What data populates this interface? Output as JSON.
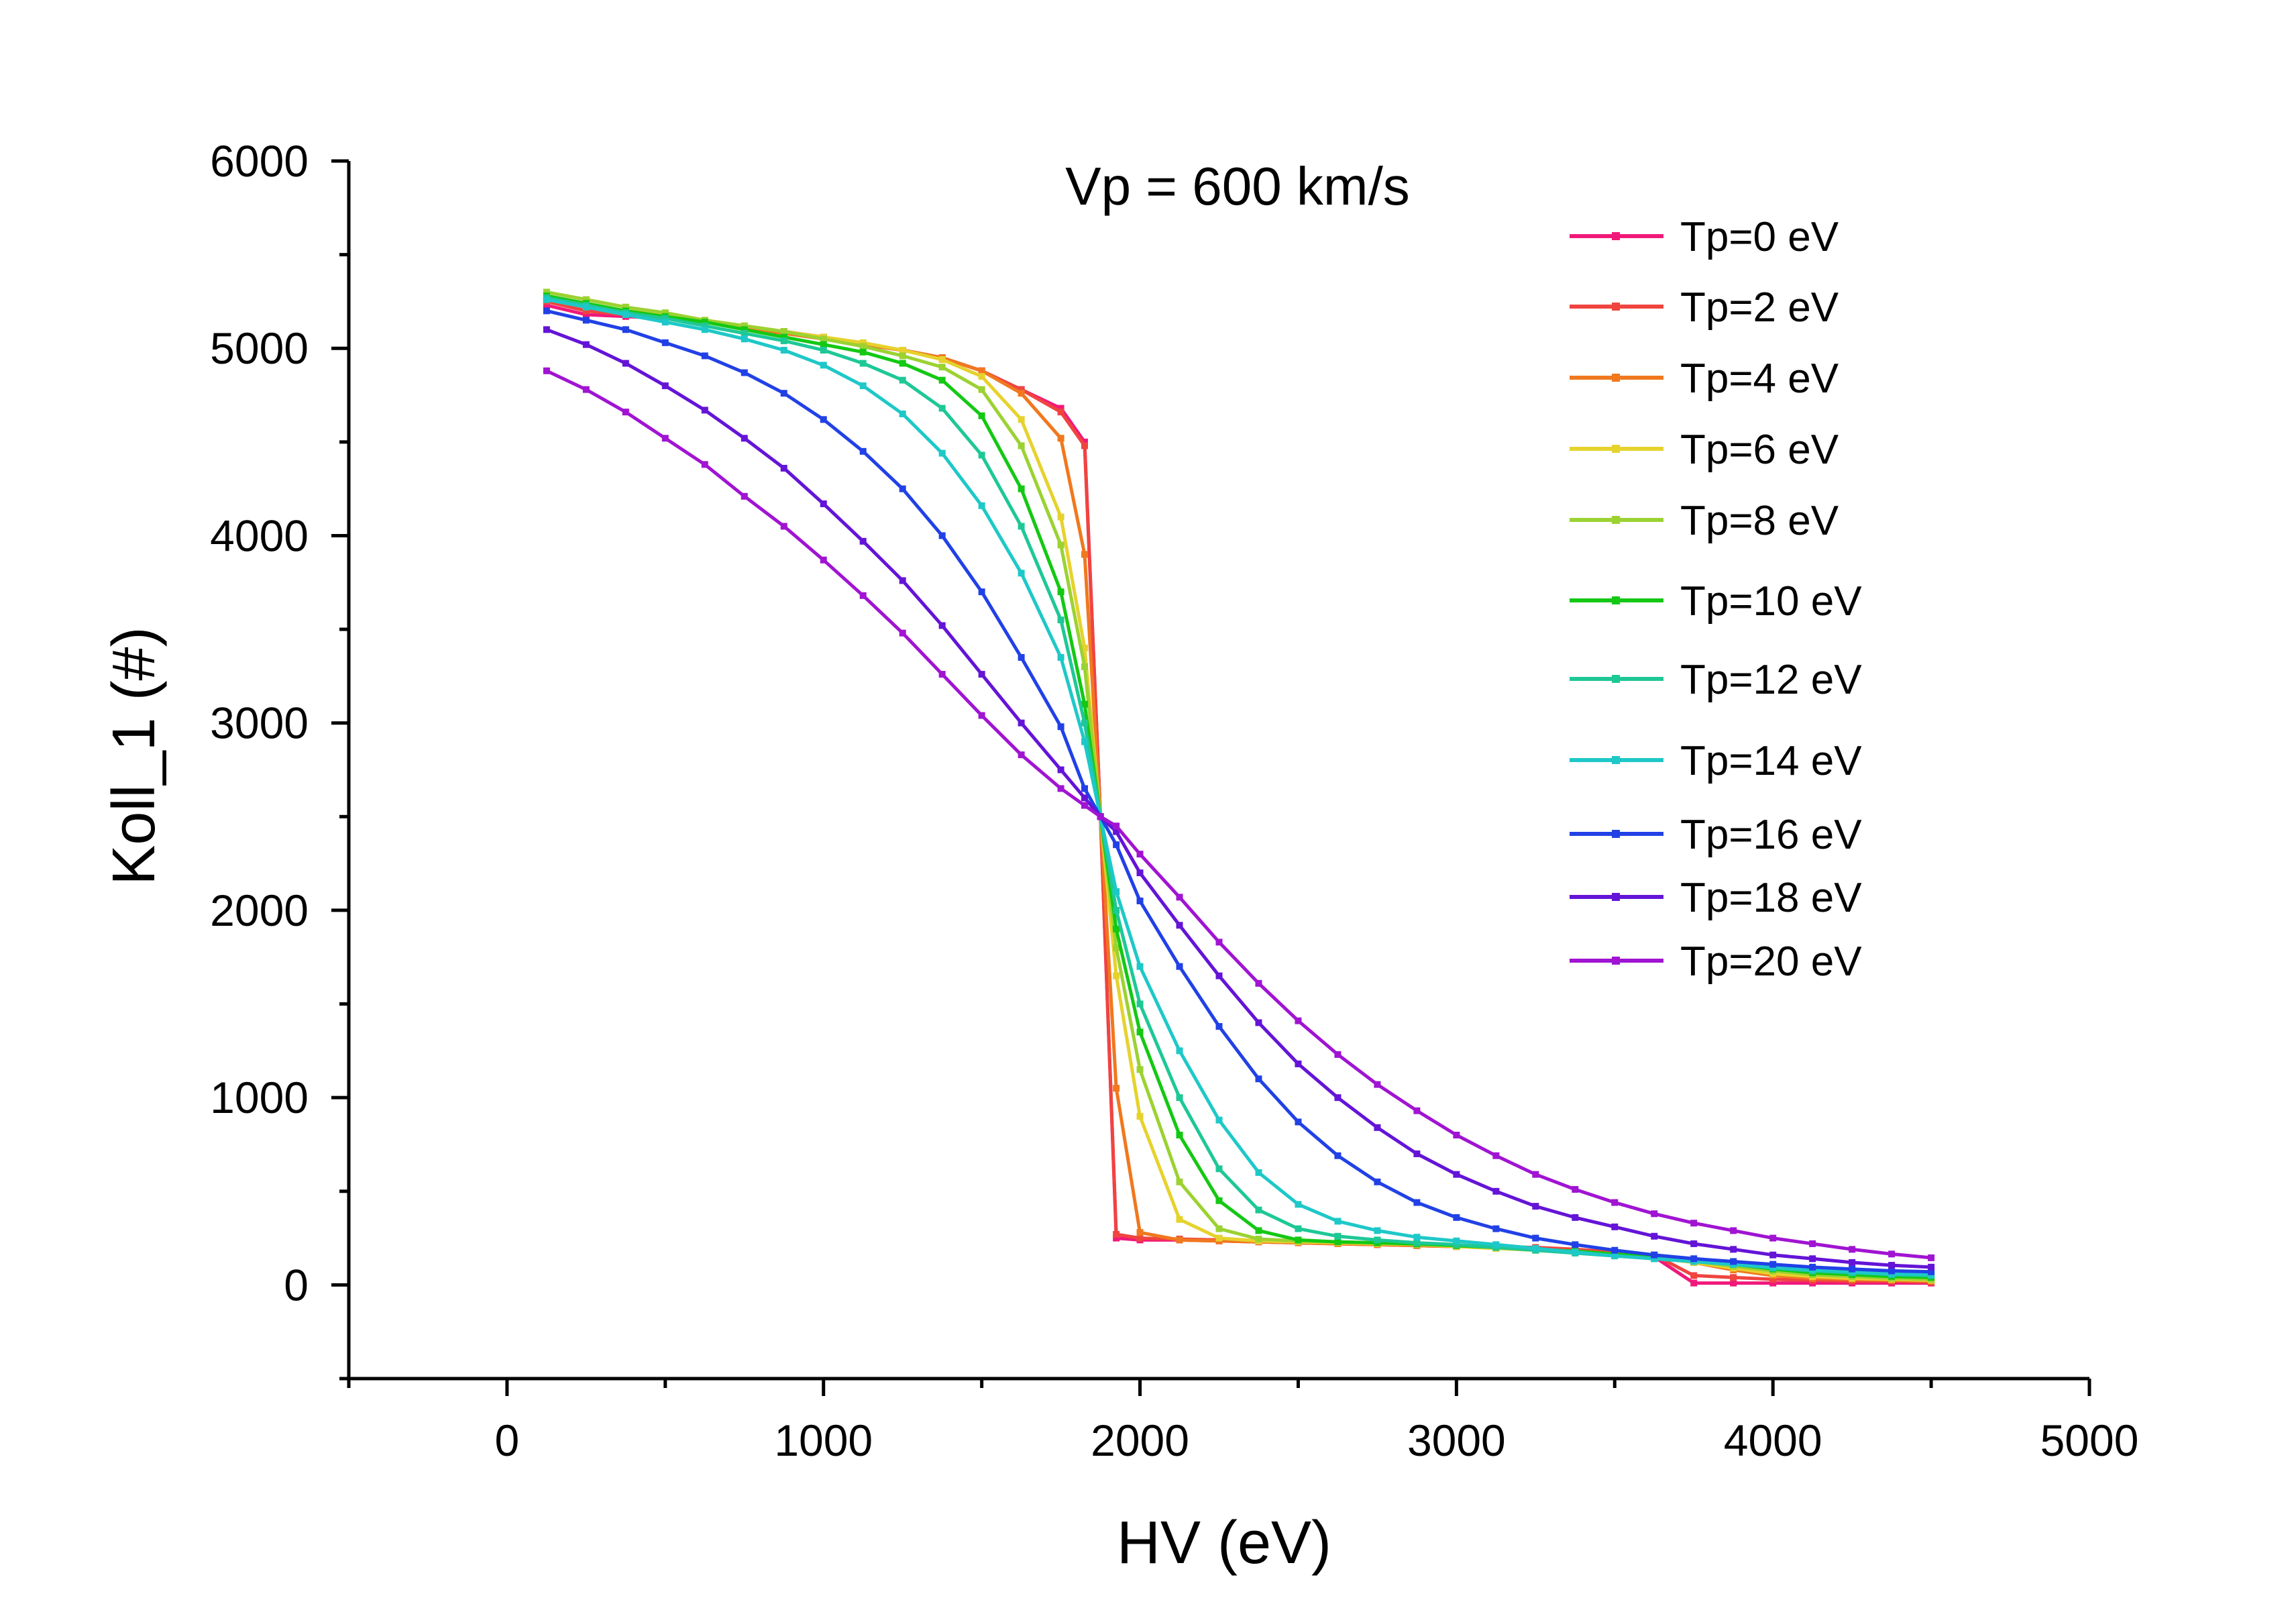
{
  "chart_data": {
    "type": "line",
    "title": "Vp = 600 km/s",
    "xlabel": "HV (eV)",
    "ylabel": "Koll_1 (#)",
    "xlim": [
      -500,
      5000
    ],
    "ylim": [
      -500,
      6000
    ],
    "xticks": [
      0,
      1000,
      2000,
      3000,
      4000,
      5000
    ],
    "yticks": [
      0,
      1000,
      2000,
      3000,
      4000,
      5000,
      6000
    ],
    "xtick_labels": [
      "0",
      "1000",
      "2000",
      "3000",
      "4000",
      "5000"
    ],
    "ytick_labels": [
      "0",
      "1000",
      "2000",
      "3000",
      "4000",
      "5000",
      "6000"
    ],
    "grid": false,
    "legend": "top-right",
    "x": [
      125,
      250,
      375,
      500,
      625,
      750,
      875,
      1000,
      1125,
      1250,
      1375,
      1500,
      1625,
      1750,
      1825,
      1875,
      1925,
      2000,
      2125,
      2250,
      2375,
      2500,
      2625,
      2750,
      2875,
      3000,
      3125,
      3250,
      3375,
      3500,
      3625,
      3750,
      3875,
      4000,
      4125,
      4250,
      4375,
      4500
    ],
    "series": [
      {
        "name": "Tp=0 eV",
        "color": "#f0197a",
        "values": [
          5230,
          5180,
          5170,
          5160,
          5140,
          5110,
          5090,
          5060,
          5020,
          4990,
          4950,
          4880,
          4780,
          4680,
          4500,
          2500,
          250,
          240,
          240,
          235,
          230,
          225,
          220,
          215,
          210,
          205,
          200,
          195,
          185,
          170,
          150,
          10,
          10,
          10,
          10,
          10,
          10,
          10
        ]
      },
      {
        "name": "Tp=2 eV",
        "color": "#f0443f",
        "values": [
          5250,
          5200,
          5180,
          5160,
          5140,
          5110,
          5090,
          5060,
          5020,
          4990,
          4950,
          4880,
          4780,
          4660,
          4480,
          2500,
          270,
          250,
          245,
          240,
          235,
          230,
          225,
          220,
          215,
          210,
          205,
          200,
          190,
          175,
          160,
          50,
          40,
          30,
          25,
          20,
          20,
          15
        ]
      },
      {
        "name": "Tp=4 eV",
        "color": "#f0781e",
        "values": [
          5260,
          5220,
          5190,
          5170,
          5140,
          5110,
          5080,
          5050,
          5020,
          4990,
          4950,
          4880,
          4760,
          4520,
          3900,
          2500,
          1050,
          280,
          240,
          235,
          230,
          225,
          220,
          215,
          210,
          205,
          200,
          190,
          180,
          165,
          150,
          120,
          80,
          50,
          35,
          30,
          25,
          20
        ]
      },
      {
        "name": "Tp=6 eV",
        "color": "#e6d22d",
        "values": [
          5300,
          5260,
          5220,
          5180,
          5150,
          5120,
          5090,
          5060,
          5030,
          4990,
          4940,
          4850,
          4620,
          4100,
          3400,
          2500,
          1650,
          900,
          350,
          250,
          235,
          230,
          225,
          220,
          215,
          205,
          195,
          185,
          175,
          160,
          145,
          120,
          90,
          60,
          45,
          35,
          30,
          25
        ]
      },
      {
        "name": "Tp=8 eV",
        "color": "#9bd232",
        "values": [
          5300,
          5260,
          5220,
          5190,
          5150,
          5120,
          5090,
          5050,
          5010,
          4960,
          4900,
          4780,
          4480,
          3950,
          3300,
          2500,
          1800,
          1150,
          550,
          300,
          245,
          235,
          230,
          225,
          215,
          210,
          200,
          190,
          180,
          165,
          150,
          125,
          100,
          75,
          55,
          45,
          35,
          30
        ]
      },
      {
        "name": "Tp=10 eV",
        "color": "#14c814",
        "values": [
          5280,
          5240,
          5200,
          5170,
          5140,
          5100,
          5060,
          5020,
          4980,
          4920,
          4830,
          4640,
          4250,
          3700,
          3100,
          2500,
          1900,
          1350,
          800,
          450,
          290,
          240,
          230,
          225,
          220,
          210,
          200,
          190,
          180,
          165,
          150,
          130,
          110,
          85,
          65,
          55,
          45,
          40
        ]
      },
      {
        "name": "Tp=12 eV",
        "color": "#1ec896",
        "values": [
          5270,
          5230,
          5190,
          5160,
          5120,
          5080,
          5040,
          4990,
          4920,
          4830,
          4680,
          4430,
          4050,
          3550,
          3000,
          2500,
          2000,
          1500,
          1000,
          620,
          400,
          300,
          260,
          240,
          225,
          215,
          200,
          185,
          170,
          155,
          140,
          125,
          110,
          90,
          75,
          65,
          55,
          50
        ]
      },
      {
        "name": "Tp=14 eV",
        "color": "#1ec8c8",
        "values": [
          5260,
          5220,
          5180,
          5140,
          5100,
          5050,
          4990,
          4910,
          4800,
          4650,
          4440,
          4160,
          3800,
          3350,
          2900,
          2500,
          2100,
          1700,
          1250,
          880,
          600,
          430,
          340,
          290,
          255,
          235,
          215,
          195,
          175,
          155,
          140,
          125,
          110,
          95,
          80,
          70,
          60,
          55
        ]
      },
      {
        "name": "Tp=16 eV",
        "color": "#2141e6",
        "values": [
          5200,
          5150,
          5100,
          5030,
          4960,
          4870,
          4760,
          4620,
          4450,
          4250,
          4000,
          3700,
          3350,
          2980,
          2650,
          2500,
          2350,
          2050,
          1700,
          1380,
          1100,
          870,
          690,
          550,
          440,
          360,
          300,
          250,
          215,
          185,
          160,
          140,
          125,
          110,
          95,
          85,
          75,
          70
        ]
      },
      {
        "name": "Tp=18 eV",
        "color": "#6414d7",
        "values": [
          5100,
          5020,
          4920,
          4800,
          4670,
          4520,
          4360,
          4170,
          3970,
          3760,
          3520,
          3260,
          3000,
          2750,
          2600,
          2500,
          2420,
          2200,
          1920,
          1650,
          1400,
          1180,
          1000,
          840,
          700,
          590,
          500,
          420,
          360,
          310,
          260,
          220,
          190,
          160,
          140,
          120,
          105,
          95
        ]
      },
      {
        "name": "Tp=20 eV",
        "color": "#a014d2",
        "values": [
          4880,
          4780,
          4660,
          4520,
          4380,
          4210,
          4050,
          3870,
          3680,
          3480,
          3260,
          3040,
          2830,
          2650,
          2560,
          2500,
          2450,
          2300,
          2070,
          1830,
          1610,
          1410,
          1230,
          1070,
          930,
          800,
          690,
          590,
          510,
          440,
          380,
          330,
          290,
          250,
          220,
          190,
          165,
          145
        ]
      }
    ]
  }
}
